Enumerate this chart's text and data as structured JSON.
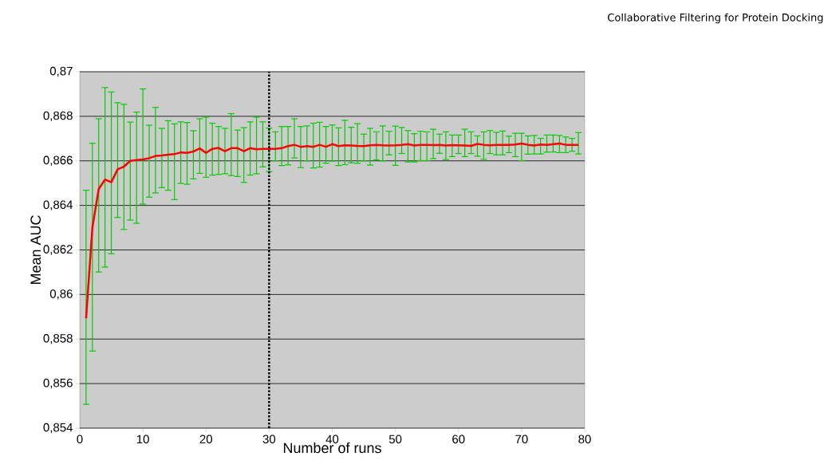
{
  "chart_data": {
    "type": "line",
    "xlabel": "Number of runs",
    "ylabel": "Mean AUC",
    "annotations": [
      "Collaborative Filtering for Protein Docking"
    ],
    "x": [
      1,
      2,
      3,
      4,
      5,
      6,
      7,
      8,
      9,
      10,
      11,
      12,
      13,
      14,
      15,
      16,
      17,
      18,
      19,
      20,
      21,
      22,
      23,
      24,
      25,
      26,
      27,
      28,
      29,
      30,
      31,
      32,
      33,
      34,
      35,
      36,
      37,
      38,
      39,
      40,
      41,
      42,
      43,
      44,
      45,
      46,
      47,
      48,
      49,
      50,
      51,
      52,
      53,
      54,
      55,
      56,
      57,
      58,
      59,
      60,
      61,
      62,
      63,
      64,
      65,
      66,
      67,
      68,
      69,
      70,
      71,
      72,
      73,
      74,
      75,
      76,
      77,
      78,
      79
    ],
    "series": [
      {
        "color": "#ff0000",
        "values": [
          0.85893,
          0.86301,
          0.86474,
          0.86516,
          0.86504,
          0.86562,
          0.86574,
          0.866,
          0.86604,
          0.86606,
          0.86612,
          0.86622,
          0.86624,
          0.86628,
          0.8663,
          0.86638,
          0.86636,
          0.86642,
          0.86656,
          0.86636,
          0.86654,
          0.86658,
          0.86643,
          0.86657,
          0.86657,
          0.86643,
          0.86657,
          0.86652,
          0.86654,
          0.86654,
          0.86654,
          0.86657,
          0.86666,
          0.86672,
          0.86663,
          0.86666,
          0.86663,
          0.86672,
          0.86663,
          0.86675,
          0.86666,
          0.8667,
          0.86669,
          0.86667,
          0.86666,
          0.8667,
          0.86672,
          0.8667,
          0.86669,
          0.8667,
          0.86672,
          0.86675,
          0.86669,
          0.86672,
          0.86672,
          0.86671,
          0.86672,
          0.86669,
          0.86671,
          0.8667,
          0.86669,
          0.86667,
          0.86676,
          0.86672,
          0.8667,
          0.86672,
          0.86672,
          0.86672,
          0.86673,
          0.86678,
          0.86672,
          0.86669,
          0.86673,
          0.86672,
          0.86675,
          0.86678,
          0.86672,
          0.86672,
          0.86672
        ],
        "errors": [
          [
            0.85507,
            0.86468
          ],
          [
            0.85746,
            0.86679
          ],
          [
            0.86101,
            0.86789
          ],
          [
            0.86123,
            0.86929
          ],
          [
            0.86183,
            0.86909
          ],
          [
            0.86346,
            0.86861
          ],
          [
            0.86292,
            0.86854
          ],
          [
            0.86334,
            0.86774
          ],
          [
            0.8632,
            0.86819
          ],
          [
            0.86406,
            0.86923
          ],
          [
            0.86437,
            0.8676
          ],
          [
            0.86456,
            0.8684
          ],
          [
            0.8648,
            0.86746
          ],
          [
            0.86468,
            0.8678
          ],
          [
            0.86426,
            0.86766
          ],
          [
            0.86499,
            0.86775
          ],
          [
            0.86495,
            0.86772
          ],
          [
            0.86519,
            0.86735
          ],
          [
            0.86544,
            0.86789
          ],
          [
            0.86526,
            0.86796
          ],
          [
            0.86536,
            0.86769
          ],
          [
            0.86539,
            0.86754
          ],
          [
            0.86542,
            0.86746
          ],
          [
            0.86534,
            0.86812
          ],
          [
            0.8653,
            0.86738
          ],
          [
            0.86503,
            0.86749
          ],
          [
            0.86536,
            0.86775
          ],
          [
            0.86542,
            0.86796
          ],
          [
            0.86573,
            0.86775
          ],
          [
            0.86552,
            0.86747
          ],
          [
            0.866,
            0.8673
          ],
          [
            0.86579,
            0.86754
          ],
          [
            0.86582,
            0.86754
          ],
          [
            0.86613,
            0.86789
          ],
          [
            0.86569,
            0.86754
          ],
          [
            0.866,
            0.86757
          ],
          [
            0.86568,
            0.86769
          ],
          [
            0.86572,
            0.86773
          ],
          [
            0.86589,
            0.86754
          ],
          [
            0.86599,
            0.86761
          ],
          [
            0.86579,
            0.86748
          ],
          [
            0.86583,
            0.86782
          ],
          [
            0.86591,
            0.86751
          ],
          [
            0.86589,
            0.86767
          ],
          [
            0.866,
            0.8672
          ],
          [
            0.86581,
            0.86746
          ],
          [
            0.86604,
            0.8673
          ],
          [
            0.866,
            0.86757
          ],
          [
            0.86627,
            0.86733
          ],
          [
            0.8658,
            0.86756
          ],
          [
            0.86633,
            0.8675
          ],
          [
            0.86595,
            0.86736
          ],
          [
            0.86595,
            0.86722
          ],
          [
            0.86601,
            0.86733
          ],
          [
            0.86601,
            0.8673
          ],
          [
            0.8661,
            0.86742
          ],
          [
            0.86634,
            0.8672
          ],
          [
            0.86606,
            0.8673
          ],
          [
            0.86619,
            0.86716
          ],
          [
            0.86633,
            0.86716
          ],
          [
            0.86619,
            0.86742
          ],
          [
            0.86633,
            0.8673
          ],
          [
            0.86621,
            0.86712
          ],
          [
            0.86607,
            0.8673
          ],
          [
            0.86633,
            0.86736
          ],
          [
            0.86627,
            0.86728
          ],
          [
            0.86627,
            0.86734
          ],
          [
            0.86637,
            0.86711
          ],
          [
            0.86619,
            0.86724
          ],
          [
            0.86601,
            0.86724
          ],
          [
            0.8663,
            0.86712
          ],
          [
            0.86631,
            0.86714
          ],
          [
            0.86631,
            0.86701
          ],
          [
            0.86639,
            0.86716
          ],
          [
            0.8664,
            0.86716
          ],
          [
            0.86637,
            0.86714
          ],
          [
            0.86637,
            0.86707
          ],
          [
            0.86643,
            0.86701
          ],
          [
            0.86631,
            0.86727
          ]
        ]
      }
    ],
    "xlim": [
      0,
      80
    ],
    "xticks": [
      0,
      10,
      20,
      30,
      40,
      50,
      60,
      70,
      80
    ],
    "ylim": [
      0.854,
      0.87
    ],
    "yticks": [
      {
        "value": 0.854,
        "label": "0,854"
      },
      {
        "value": 0.856,
        "label": "0,856"
      },
      {
        "value": 0.858,
        "label": "0,858"
      },
      {
        "value": 0.86,
        "label": "0,86"
      },
      {
        "value": 0.862,
        "label": "0,862"
      },
      {
        "value": 0.864,
        "label": "0,864"
      },
      {
        "value": 0.866,
        "label": "0,866"
      },
      {
        "value": 0.868,
        "label": "0,868"
      },
      {
        "value": 0.87,
        "label": "0,87"
      }
    ],
    "ref_lines": [
      {
        "axis": "x",
        "value": 30,
        "color": "#000000",
        "line_style": "dotted"
      }
    ],
    "grid": "y",
    "marker": "none",
    "line_style": "solid"
  }
}
